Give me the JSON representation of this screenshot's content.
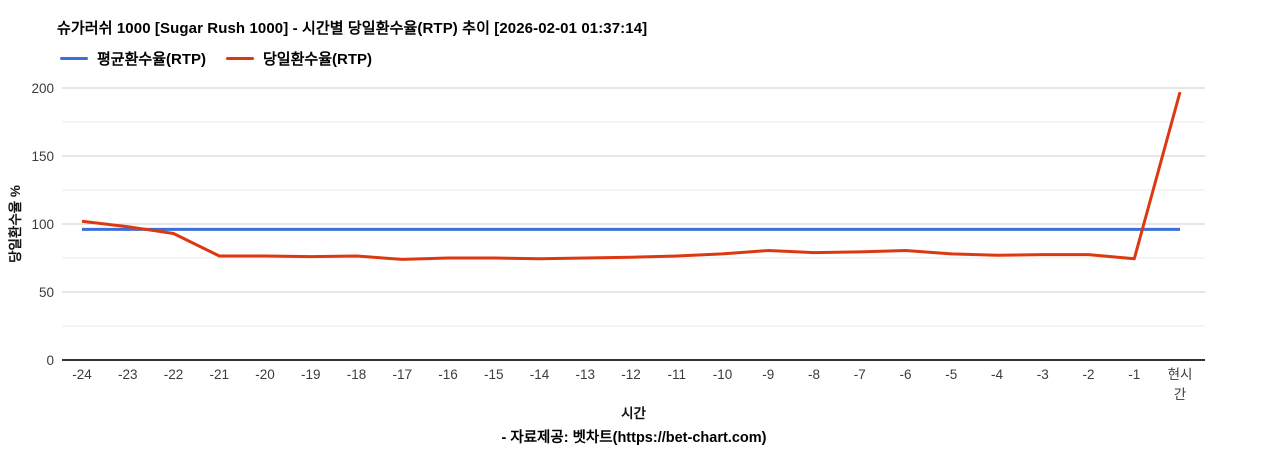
{
  "page": {
    "source_caption": "- 자료제공: 벳차트(https://bet-chart.com)"
  },
  "chart_data": {
    "type": "line",
    "title": "슈가러쉬 1000 [Sugar Rush 1000] - 시간별 당일환수율(RTP) 추이 [2026-02-01 01:37:14]",
    "xlabel": "시간",
    "ylabel": "당일환수율 %",
    "ylim": [
      0,
      200
    ],
    "y_major_ticks": [
      0,
      50,
      100,
      150,
      200
    ],
    "y_minor_ticks": [
      25,
      75,
      125,
      175
    ],
    "grid": true,
    "legend_position": "top-left",
    "x_categories": [
      "-24",
      "-23",
      "-22",
      "-21",
      "-20",
      "-19",
      "-18",
      "-17",
      "-16",
      "-15",
      "-14",
      "-13",
      "-12",
      "-11",
      "-10",
      "-9",
      "-8",
      "-7",
      "-6",
      "-5",
      "-4",
      "-3",
      "-2",
      "-1",
      "현시간"
    ],
    "series": [
      {
        "name": "평균환수율(RTP)",
        "color": "#3d6fd8",
        "values": [
          96,
          96,
          96,
          96,
          96,
          96,
          96,
          96,
          96,
          96,
          96,
          96,
          96,
          96,
          96,
          96,
          96,
          96,
          96,
          96,
          96,
          96,
          96,
          96,
          96
        ]
      },
      {
        "name": "당일환수율(RTP)",
        "color": "#dc3912",
        "values": [
          102,
          98,
          93,
          76.5,
          76.5,
          76,
          76.5,
          74,
          75,
          75,
          74.5,
          75,
          75.5,
          76.5,
          78,
          80.5,
          79,
          79.5,
          80.5,
          78,
          77,
          77.5,
          77.5,
          74.5,
          197
        ]
      }
    ]
  }
}
